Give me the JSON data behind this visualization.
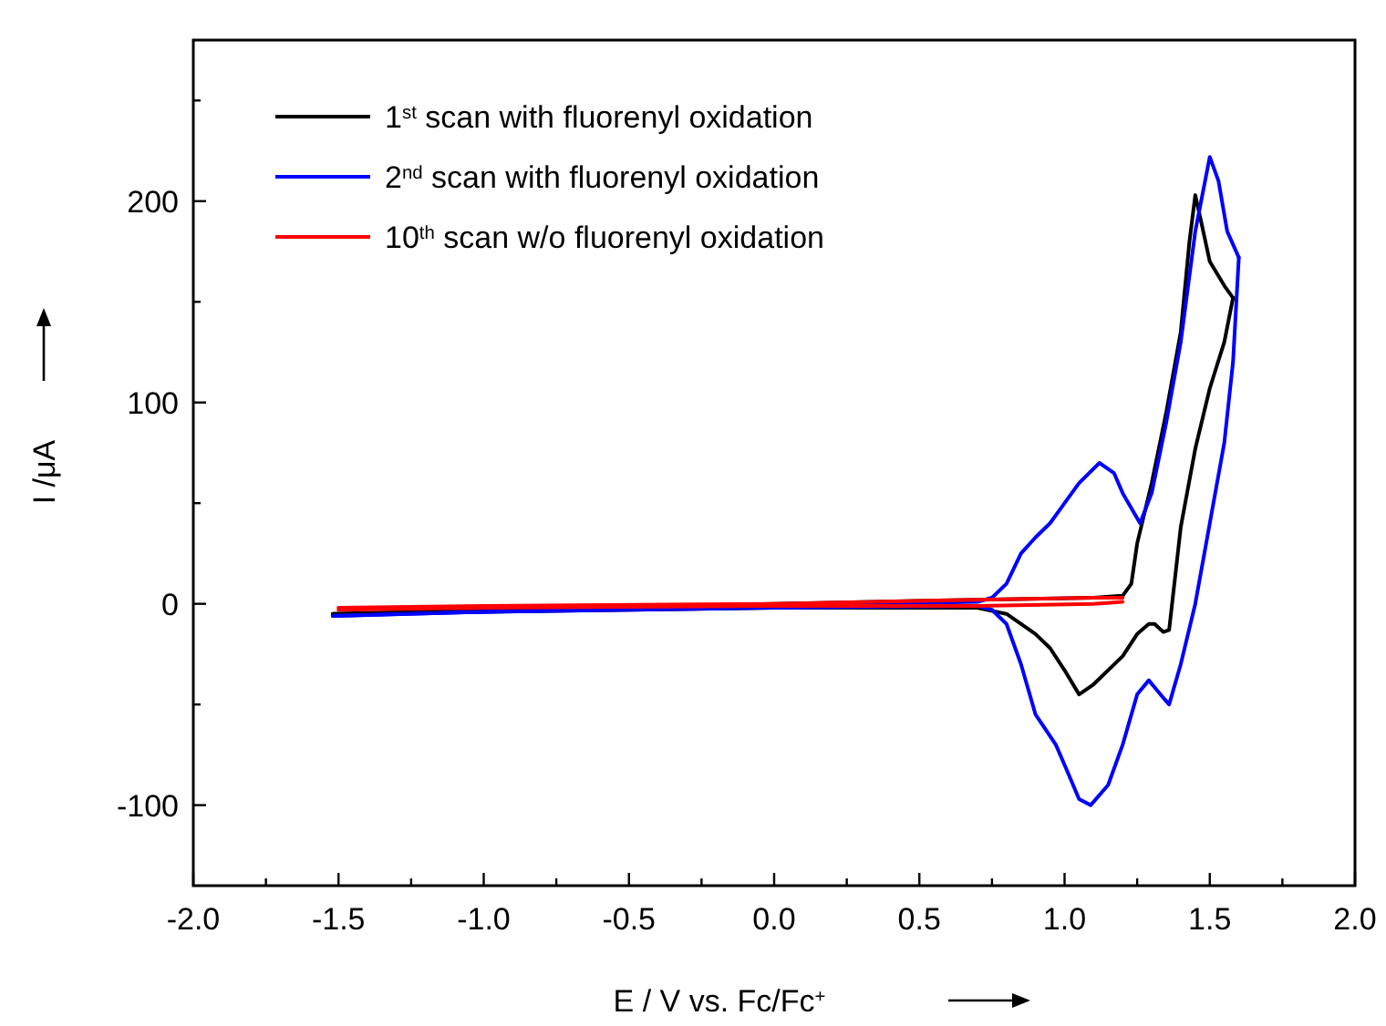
{
  "chart_data": {
    "type": "line",
    "xlabel": "E / V vs. Fc/Fc$^{+}$",
    "ylabel": "I /μA",
    "xlim": [
      -2,
      2
    ],
    "xticks": [
      {
        "value": -2,
        "label": "-2.0"
      },
      {
        "value": -1.75,
        "label": null
      },
      {
        "value": -1.5,
        "label": "-1.5"
      },
      {
        "value": -1.25,
        "label": null
      },
      {
        "value": -1,
        "label": "-1.0"
      },
      {
        "value": -0.75,
        "label": null
      },
      {
        "value": -0.5,
        "label": "-0.5"
      },
      {
        "value": -0.25,
        "label": null
      },
      {
        "value": 0,
        "label": "0.0"
      },
      {
        "value": 0.25,
        "label": null
      },
      {
        "value": 0.5,
        "label": "0.5"
      },
      {
        "value": 0.75,
        "label": null
      },
      {
        "value": 1,
        "label": "1.0"
      },
      {
        "value": 1.25,
        "label": null
      },
      {
        "value": 1.5,
        "label": "1.5"
      },
      {
        "value": 1.75,
        "label": null
      },
      {
        "value": 2,
        "label": "2.0"
      }
    ],
    "ylim": [
      -140,
      280
    ],
    "yticks": [
      -100,
      {
        "value": -50,
        "label": null
      },
      0,
      {
        "value": 50,
        "label": null
      },
      100,
      {
        "value": 150,
        "label": null
      },
      200,
      {
        "value": 250,
        "label": null
      }
    ],
    "grid": false,
    "legend": "top left",
    "marker": "none",
    "line_style": "solid",
    "series": [
      {
        "name": "1$^{st}$ scan with fluorenyl oxidation",
        "color": "#000000",
        "x": [
          -1.52,
          -1.0,
          0.0,
          0.7,
          1.1,
          1.2,
          1.23,
          1.25,
          1.3,
          1.35,
          1.4,
          1.43,
          1.45,
          1.47,
          1.5,
          1.55,
          1.58
        ],
        "values": [
          -5,
          -3,
          0,
          2,
          3,
          4,
          10,
          30,
          60,
          95,
          135,
          180,
          203,
          190,
          170,
          158,
          152
        ]
      },
      {
        "color": "#000000",
        "x": [
          -1.52,
          -1.0,
          0.0,
          0.7,
          0.8,
          0.9,
          0.95,
          1.0,
          1.05,
          1.1,
          1.2,
          1.25,
          1.29,
          1.31,
          1.34,
          1.36,
          1.4,
          1.45,
          1.5,
          1.55,
          1.58
        ],
        "values": [
          -5,
          -4,
          -2,
          -2,
          -5,
          -15,
          -22,
          -33,
          -45,
          -40,
          -26,
          -15,
          -10,
          -10,
          -14,
          -13,
          38,
          77,
          107,
          130,
          152
        ]
      },
      {
        "name": "2$^{nd}$ scan with fluorenyl oxidation",
        "color": "#0000ff",
        "x": [
          -1.52,
          -1.0,
          0.0,
          0.7,
          0.75,
          0.8,
          0.85,
          0.9,
          0.95,
          1.0,
          1.05,
          1.12,
          1.17,
          1.2,
          1.26,
          1.3,
          1.35,
          1.4,
          1.45,
          1.5,
          1.53,
          1.56,
          1.6
        ],
        "values": [
          -6,
          -4,
          -1,
          1,
          3,
          10,
          25,
          33,
          40,
          50,
          60,
          70,
          65,
          55,
          40,
          55,
          90,
          130,
          185,
          222,
          210,
          185,
          172
        ]
      },
      {
        "color": "#0000ff",
        "x": [
          -1.52,
          -1.0,
          0.0,
          0.7,
          0.75,
          0.8,
          0.85,
          0.9,
          0.97,
          1.0,
          1.05,
          1.09,
          1.15,
          1.2,
          1.25,
          1.29,
          1.33,
          1.36,
          1.4,
          1.45,
          1.5,
          1.55,
          1.58,
          1.6
        ],
        "values": [
          -6,
          -4,
          -2,
          -1,
          -3,
          -10,
          -30,
          -55,
          -70,
          -80,
          -97,
          -100,
          -90,
          -70,
          -45,
          -38,
          -45,
          -50,
          -30,
          0,
          40,
          80,
          120,
          172
        ]
      },
      {
        "name": "10$^{th}$ scan w/o fluorenyl oxidation",
        "color": "#ff0000",
        "x": [
          -1.5,
          -1.0,
          0.0,
          0.7,
          1.1,
          1.2
        ],
        "values": [
          -2,
          -1,
          0,
          2,
          3,
          3
        ]
      },
      {
        "color": "#ff0000",
        "x": [
          -1.5,
          -1.0,
          0.0,
          0.7,
          1.1,
          1.2
        ],
        "values": [
          -3,
          -2,
          -1,
          -1,
          0,
          1
        ]
      }
    ]
  }
}
